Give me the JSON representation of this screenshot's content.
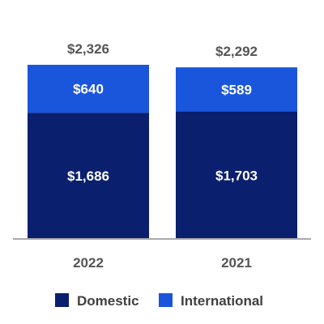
{
  "chart_data": {
    "type": "bar",
    "stacked": true,
    "categories": [
      "2022",
      "2021"
    ],
    "series": [
      {
        "name": "Domestic",
        "values": [
          1686,
          1703
        ],
        "labels": [
          "$1,686",
          "$1,703"
        ],
        "color": "#0a1f6e"
      },
      {
        "name": "International",
        "values": [
          640,
          589
        ],
        "labels": [
          "$640",
          "$589"
        ],
        "color": "#1a56db"
      }
    ],
    "totals": [
      2326,
      2292
    ],
    "total_labels": [
      "$2,326",
      "$2,292"
    ],
    "ylim": [
      0,
      2326
    ],
    "grid": false,
    "legend": "bottom-center",
    "axis_color": "#aaaaaa"
  }
}
